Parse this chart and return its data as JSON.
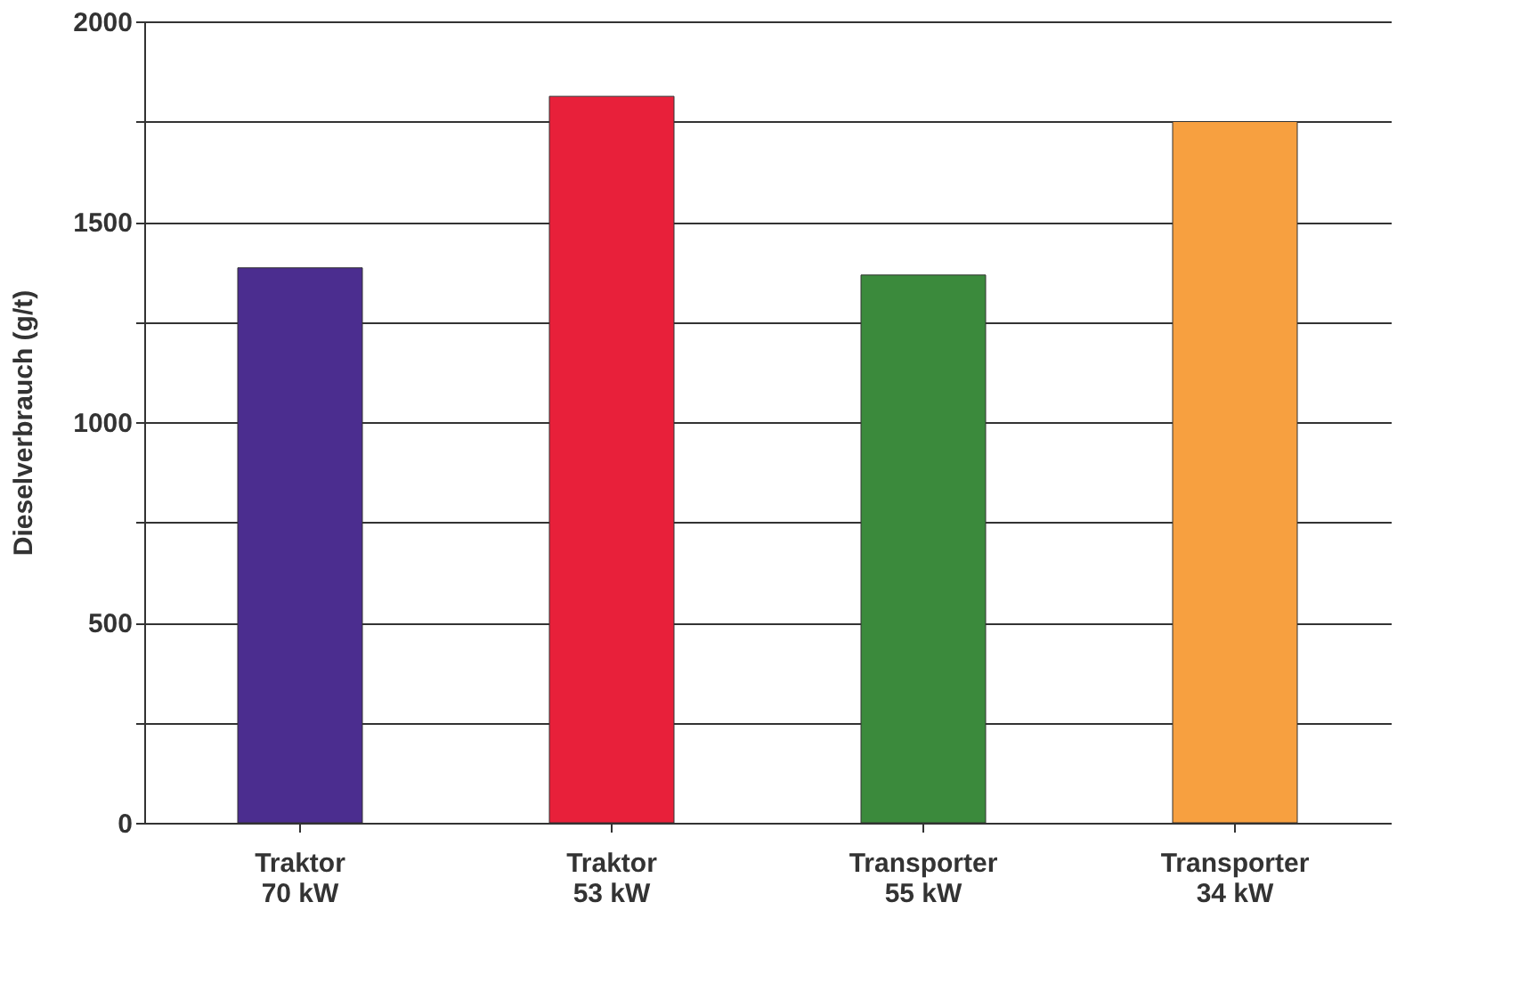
{
  "chart_data": {
    "type": "bar",
    "ylabel": "Dieselverbrauch (g/t)",
    "categories": [
      "Traktor\n70 kW",
      "Traktor\n53 kW",
      "Transporter\n55 kW",
      "Transporter\n34 kW"
    ],
    "values": [
      1385,
      1813,
      1367,
      1750
    ],
    "colors": [
      "#4b2d8f",
      "#e8203a",
      "#3b8a3c",
      "#f7a040"
    ],
    "ylim": [
      0,
      2000
    ],
    "yticks": [
      0,
      {
        "value": 250,
        "label": null
      },
      500,
      {
        "value": 750,
        "label": null
      },
      1000,
      {
        "value": 1250,
        "label": null
      },
      1500,
      {
        "value": 1750,
        "label": null
      },
      2000
    ],
    "grid": "y"
  }
}
